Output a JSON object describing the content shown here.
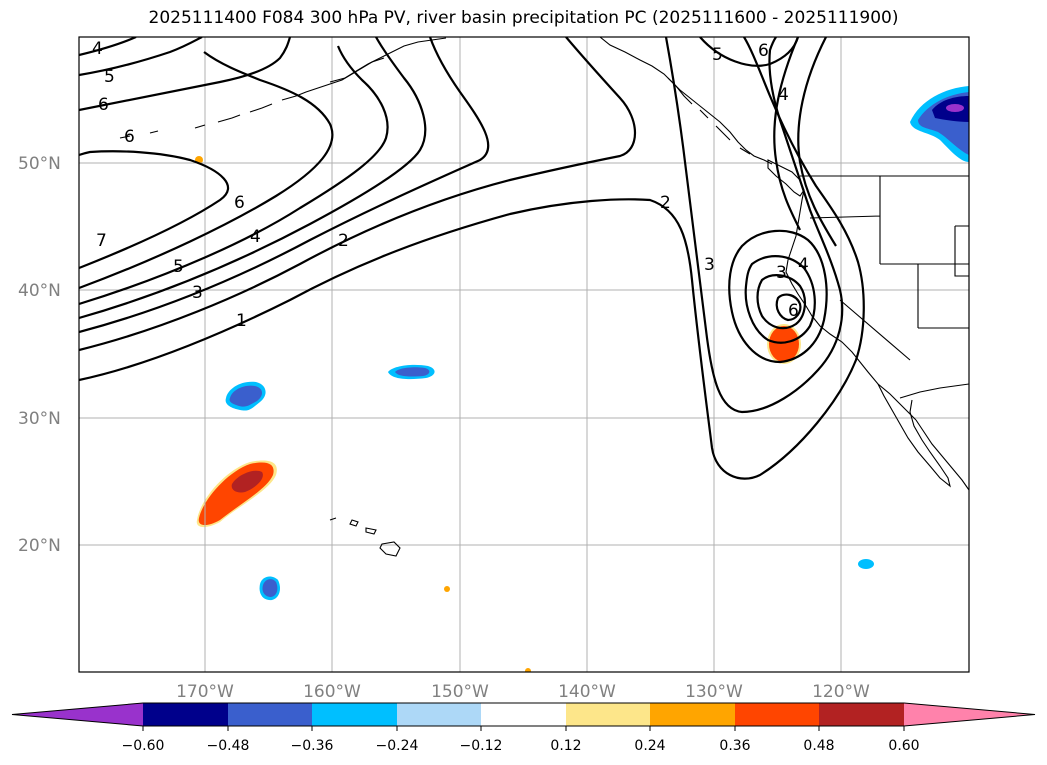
{
  "title": "2025111400 F084 300 hPa PV, river basin precipitation PC (2025111600 - 2025111900)",
  "lat_labels": [
    "50°N",
    "40°N",
    "30°N",
    "20°N"
  ],
  "lon_labels": [
    "170°W",
    "160°W",
    "150°W",
    "140°W",
    "130°W",
    "120°W"
  ],
  "contour_labels": [
    "4",
    "5",
    "6",
    "6",
    "7",
    "6",
    "4",
    "5",
    "3",
    "1",
    "2",
    "2",
    "3",
    "5",
    "6",
    "4",
    "3",
    "4",
    "6"
  ],
  "colorbar": {
    "ticks": [
      "−0.60",
      "−0.48",
      "−0.36",
      "−0.24",
      "−0.12",
      "0.12",
      "0.24",
      "0.36",
      "0.48",
      "0.60"
    ],
    "colors": [
      "#9932cc",
      "#00008b",
      "#3a5fcd",
      "#00bfff",
      "#add8f7",
      "#ffffff",
      "#fde68a",
      "#ffa500",
      "#ff4500",
      "#b22222",
      "#ff82ab"
    ]
  },
  "chart_data": {
    "type": "map",
    "title": "2025111400 F084 300 hPa PV, river basin precipitation PC (2025111600 - 2025111900)",
    "fields": [
      "300 hPa PV contours",
      "river basin precipitation PC shading"
    ],
    "pv_contour_levels": [
      1,
      2,
      3,
      4,
      5,
      6,
      7
    ],
    "shading_levels": [
      -0.6,
      -0.48,
      -0.36,
      -0.24,
      -0.12,
      0.12,
      0.24,
      0.36,
      0.48,
      0.6
    ],
    "lon_range": [
      -180,
      -110
    ],
    "lat_range": [
      10,
      60
    ],
    "features": [
      {
        "name": "positive PC maximum near Hawaii NW",
        "value": "0.48"
      },
      {
        "name": "positive PC maximum off California",
        "value": "0.36"
      },
      {
        "name": "negative PC patches",
        "value": "-0.36"
      }
    ]
  }
}
